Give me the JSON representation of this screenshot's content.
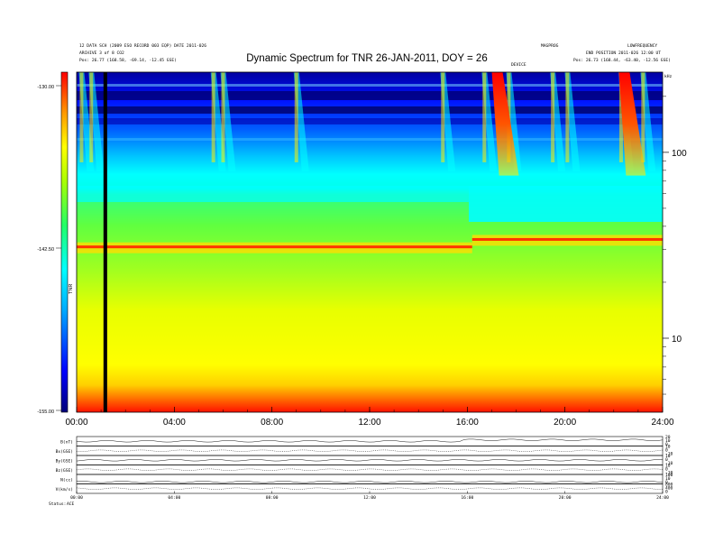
{
  "header": {
    "title": "Dynamic Spectrum for TNR 26-JAN-2011, DOY = 26",
    "left_line1": "12 DATA SCH (2009 ESO RECORD 003 EQP) DATE 2011-026",
    "left_line2": "ARCHIVE 3 of 8 CO2",
    "left_pos": "Pos:    26.77 (168.58, -69.14, -12.45 GSE)",
    "right_line1": "MAGPROG",
    "right_line2": "LOWFREQUENCY",
    "right_line3": "END POSITION 2011-026 12:00 UT",
    "right_pos": "Pos:    26.73 (168.44, -63.40, -12.56 GSE)",
    "mid_label": "DEVICE",
    "corner_unit": "kHz"
  },
  "colorbar": {
    "labels": [
      "-130.00",
      "-142.50",
      "-155.00"
    ],
    "unit": "TNR",
    "colors": [
      "#000078",
      "#0000ff",
      "#0088ff",
      "#00ffff",
      "#00ff66",
      "#88ff00",
      "#ffff00",
      "#ffaa00",
      "#ff4400",
      "#ff0000"
    ]
  },
  "chart_data": {
    "type": "heatmap",
    "title": "Dynamic Spectrum for TNR 26-JAN-2011, DOY = 26",
    "xlabel": "",
    "ylabel": "",
    "x_ticks": [
      "00:00",
      "04:00",
      "08:00",
      "12:00",
      "16:00",
      "20:00",
      "24:00"
    ],
    "x_range_hours": [
      0,
      24
    ],
    "y_scale": "log",
    "y_ticks": [
      10,
      100
    ],
    "y_range_khz": [
      4,
      270
    ],
    "color_range_db": [
      -155.0,
      -130.0
    ],
    "features": {
      "plasma_line_khz_before_1612": 31,
      "plasma_line_khz_after_1612": 34,
      "data_gap_hours": [
        1.1,
        1.25
      ],
      "type3_bursts_hours": [
        0.2,
        0.6,
        5.6,
        6.0,
        9.0,
        15.0,
        16.7,
        17.7,
        19.5,
        20.1,
        22.3,
        23.2
      ],
      "strong_bursts_hours": [
        17.3,
        22.5
      ]
    },
    "panels": [
      {
        "label": "B(nT)",
        "scale": [
          "20",
          "10",
          "0"
        ]
      },
      {
        "label": "Bx(GSE)",
        "scale": [
          "10",
          "0",
          "-10"
        ]
      },
      {
        "label": "By(GSE)",
        "scale": [
          "10",
          "0",
          "-10"
        ]
      },
      {
        "label": "Bz(GSE)",
        "scale": [
          "10",
          "0",
          "-10"
        ]
      },
      {
        "label": "N(cc)",
        "scale": [
          "100",
          "10",
          "0"
        ]
      },
      {
        "label": "V(km/s)",
        "scale": [
          "800",
          "400",
          "0"
        ]
      }
    ],
    "bottom_x_ticks": [
      "00:00",
      "04:00",
      "08:00",
      "12:00",
      "16:00",
      "20:00",
      "24:00"
    ]
  },
  "footer": {
    "status_label": "Status:",
    "status_value": "ACE"
  }
}
